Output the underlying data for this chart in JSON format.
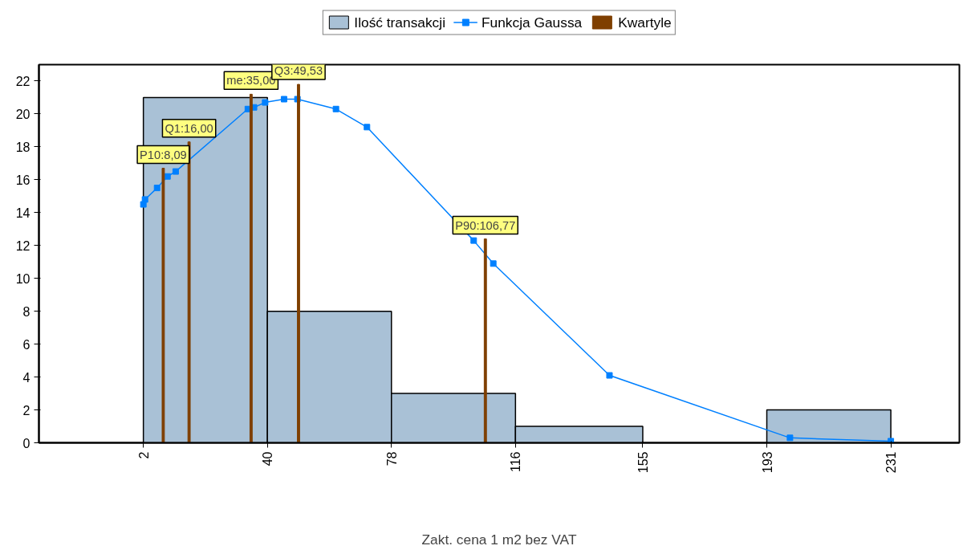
{
  "chart_data": {
    "type": "histogram",
    "xlabel": "Zakt. cena 1 m2 bez VAT",
    "bins": [
      2,
      40,
      78,
      116,
      155,
      193,
      231
    ],
    "xlim": [
      -30,
      252
    ],
    "ylim": [
      0,
      23
    ],
    "xticks": [
      2,
      40,
      78,
      116,
      155,
      193,
      231
    ],
    "yticks": [
      0,
      2,
      4,
      6,
      8,
      10,
      12,
      14,
      16,
      18,
      20,
      22
    ],
    "grid": false,
    "legend": "top",
    "series": [
      {
        "name": "Ilość transakcji",
        "color": "#a9c1d6",
        "values": [
          21,
          8,
          3,
          1,
          0,
          2
        ]
      },
      {
        "name": "Funkcja Gaussa",
        "type": "line",
        "color": "#0080ff",
        "marker": "square",
        "x": [
          2,
          2.5,
          6.2,
          9.4,
          11.9,
          34,
          35.9,
          39.3,
          45.1,
          49.2,
          61,
          70.5,
          103.2,
          109.2,
          144.8,
          200.1,
          231
        ],
        "values": [
          14.5,
          14.8,
          15.5,
          16.2,
          16.5,
          20.3,
          20.4,
          20.7,
          20.9,
          20.9,
          20.3,
          19.2,
          12.3,
          10.9,
          4.1,
          0.3,
          0.1
        ]
      },
      {
        "name": "Kwartyle",
        "type": "bar",
        "color": "#7f3f00",
        "x": [
          8.09,
          16,
          35,
          49.53,
          106.77
        ],
        "values": [
          16.7,
          18.3,
          21.2,
          21.8,
          12.4
        ]
      }
    ],
    "annotations": [
      {
        "text": "P10:8,09",
        "x": 8.09,
        "y": 16.7
      },
      {
        "text": "Q1:16,00",
        "x": 16,
        "y": 18.3
      },
      {
        "text": "me:35,00",
        "x": 35,
        "y": 21.2
      },
      {
        "text": "Q3:49,53",
        "x": 49.53,
        "y": 21.8
      },
      {
        "text": "P90:106,77",
        "x": 106.77,
        "y": 12.4
      }
    ]
  }
}
